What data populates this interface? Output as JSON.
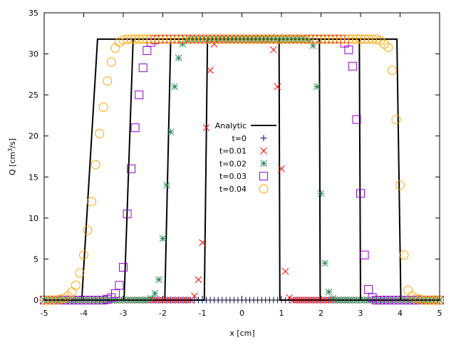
{
  "chart_data": {
    "type": "scatter",
    "xlabel": "x [cm]",
    "ylabel": "Q [cm",
    "ylabel_sup": "3",
    "ylabel_tail": "/s]",
    "xlim": [
      -5,
      5
    ],
    "ylim": [
      0,
      35
    ],
    "xticks": [
      -5,
      -4,
      -3,
      -2,
      -1,
      0,
      1,
      2,
      3,
      4,
      5
    ],
    "yticks": [
      0,
      5,
      10,
      15,
      20,
      25,
      30,
      35
    ],
    "grid": false,
    "legend_placement": "center",
    "analytic": {
      "name": "Analytic",
      "color": "#000000",
      "curves": [
        [
          [
            -5,
            0
          ],
          [
            -0.95,
            0
          ],
          [
            -0.87,
            31.8
          ],
          [
            0.94,
            31.8
          ],
          [
            0.96,
            0
          ],
          [
            5,
            0
          ]
        ],
        [
          [
            -5,
            0
          ],
          [
            -1.95,
            0
          ],
          [
            -1.8,
            31.8
          ],
          [
            1.96,
            31.8
          ],
          [
            1.98,
            0
          ],
          [
            5,
            0
          ]
        ],
        [
          [
            -5,
            0
          ],
          [
            -2.98,
            0
          ],
          [
            -2.75,
            31.8
          ],
          [
            2.97,
            31.8
          ],
          [
            3.0,
            0
          ],
          [
            5,
            0
          ]
        ],
        [
          [
            -5,
            0
          ],
          [
            -4.05,
            0
          ],
          [
            -3.65,
            31.8
          ],
          [
            3.92,
            31.8
          ],
          [
            4.02,
            0
          ],
          [
            5,
            0
          ]
        ]
      ]
    },
    "x": [
      -5.0,
      -4.9,
      -4.8,
      -4.7,
      -4.6,
      -4.5,
      -4.4,
      -4.3,
      -4.2,
      -4.1,
      -4.0,
      -3.9,
      -3.8,
      -3.7,
      -3.6,
      -3.5,
      -3.4,
      -3.3,
      -3.2,
      -3.1,
      -3.0,
      -2.9,
      -2.8,
      -2.7,
      -2.6,
      -2.5,
      -2.4,
      -2.3,
      -2.2,
      -2.1,
      -2.0,
      -1.9,
      -1.8,
      -1.7,
      -1.6,
      -1.5,
      -1.4,
      -1.3,
      -1.2,
      -1.1,
      -1.0,
      -0.9,
      -0.8,
      -0.7,
      -0.6,
      -0.5,
      -0.4,
      -0.3,
      -0.2,
      -0.1,
      0.0,
      0.1,
      0.2,
      0.3,
      0.4,
      0.5,
      0.6,
      0.7,
      0.8,
      0.9,
      1.0,
      1.1,
      1.2,
      1.3,
      1.4,
      1.5,
      1.6,
      1.7,
      1.8,
      1.9,
      2.0,
      2.1,
      2.2,
      2.3,
      2.4,
      2.5,
      2.6,
      2.7,
      2.8,
      2.9,
      3.0,
      3.1,
      3.2,
      3.3,
      3.4,
      3.5,
      3.6,
      3.7,
      3.8,
      3.9,
      4.0,
      4.1,
      4.2,
      4.3,
      4.4,
      4.5,
      4.6,
      4.7,
      4.8,
      4.9,
      5.0
    ],
    "series": [
      {
        "name": "t=0",
        "marker": "plus",
        "color": "#00008b",
        "values": [
          0,
          0,
          0,
          0,
          0,
          0,
          0,
          0,
          0,
          0,
          0,
          0,
          0,
          0,
          0,
          0,
          0,
          0,
          0,
          0,
          0,
          0,
          0,
          0,
          0,
          0,
          0,
          0,
          0,
          0,
          0,
          0,
          0,
          0,
          0,
          0,
          0,
          0,
          0,
          0,
          0,
          0,
          0,
          0,
          0,
          0,
          0,
          0,
          0,
          0,
          0,
          0,
          0,
          0,
          0,
          0,
          0,
          0,
          0,
          0,
          0,
          0,
          0,
          0,
          0,
          0,
          0,
          0,
          0,
          0,
          0,
          0,
          0,
          0,
          0,
          0,
          0,
          0,
          0,
          0,
          0,
          0,
          0,
          0,
          0,
          0,
          0,
          0,
          0,
          0,
          0,
          0,
          0,
          0,
          0,
          0,
          0,
          0,
          0,
          0,
          0
        ]
      },
      {
        "name": "t=0.01",
        "marker": "cross",
        "color": "#ff0000",
        "values": [
          0,
          0,
          0,
          0,
          0,
          0,
          0,
          0,
          0,
          0,
          0,
          0,
          0,
          0,
          0,
          0,
          0,
          0,
          0,
          0,
          0,
          0,
          0,
          0,
          0,
          0,
          0,
          0,
          0,
          0,
          0,
          0,
          0,
          0,
          0,
          0,
          0,
          0,
          0.5,
          2.5,
          7,
          21,
          28,
          31.2,
          31.8,
          31.8,
          31.8,
          31.8,
          31.8,
          31.8,
          31.8,
          31.8,
          31.8,
          31.8,
          31.8,
          31.8,
          31.8,
          31.8,
          30.5,
          26,
          16,
          3.5,
          0.3,
          0,
          0,
          0,
          0,
          0,
          0,
          0,
          0,
          0,
          0,
          0,
          0,
          0,
          0,
          0,
          0,
          0,
          0,
          0,
          0,
          0,
          0,
          0,
          0,
          0,
          0,
          0,
          0,
          0,
          0,
          0,
          0,
          0,
          0,
          0,
          0,
          0,
          0
        ]
      },
      {
        "name": "t=0.02",
        "marker": "star",
        "color": "#2e8b57",
        "values": [
          0,
          0,
          0,
          0,
          0,
          0,
          0,
          0,
          0,
          0,
          0,
          0,
          0,
          0,
          0,
          0,
          0,
          0,
          0,
          0,
          0,
          0,
          0,
          0,
          0,
          0,
          0,
          0.2,
          0.8,
          2.5,
          7.5,
          14,
          20.5,
          26,
          29.5,
          31.2,
          31.7,
          31.8,
          31.8,
          31.8,
          31.8,
          31.8,
          31.8,
          31.8,
          31.8,
          31.8,
          31.8,
          31.8,
          31.8,
          31.8,
          31.8,
          31.8,
          31.8,
          31.8,
          31.8,
          31.8,
          31.8,
          31.8,
          31.8,
          31.8,
          31.8,
          31.8,
          31.8,
          31.8,
          31.8,
          31.8,
          31.8,
          31.6,
          31,
          26,
          13,
          4.5,
          1,
          0.2,
          0,
          0,
          0,
          0,
          0,
          0,
          0,
          0,
          0,
          0,
          0,
          0,
          0,
          0,
          0,
          0,
          0,
          0,
          0,
          0,
          0,
          0,
          0,
          0,
          0,
          0,
          0
        ]
      },
      {
        "name": "t=0.03",
        "marker": "square",
        "color": "#9400d3",
        "values": [
          0,
          0,
          0,
          0,
          0,
          0,
          0,
          0,
          0,
          0,
          0,
          0,
          0,
          0,
          0,
          0,
          0.1,
          0.3,
          0.8,
          1.8,
          4,
          10.5,
          16,
          21,
          25,
          28.3,
          30.4,
          31.4,
          31.7,
          31.8,
          31.8,
          31.8,
          31.8,
          31.8,
          31.8,
          31.8,
          31.8,
          31.8,
          31.8,
          31.8,
          31.8,
          31.8,
          31.8,
          31.8,
          31.8,
          31.8,
          31.8,
          31.8,
          31.8,
          31.8,
          31.8,
          31.8,
          31.8,
          31.8,
          31.8,
          31.8,
          31.8,
          31.8,
          31.8,
          31.8,
          31.8,
          31.8,
          31.8,
          31.8,
          31.8,
          31.8,
          31.8,
          31.8,
          31.8,
          31.8,
          31.8,
          31.8,
          31.8,
          31.8,
          31.8,
          31.8,
          31.3,
          30.5,
          28.5,
          22,
          13,
          5.5,
          1.3,
          0.3,
          0,
          0,
          0,
          0,
          0,
          0,
          0,
          0,
          0,
          0,
          0,
          0,
          0,
          0,
          0,
          0,
          0
        ]
      },
      {
        "name": "t=0.04",
        "marker": "circle",
        "color": "#ffa500",
        "values": [
          0,
          0,
          0,
          0,
          0.1,
          0.2,
          0.5,
          1,
          1.8,
          3.3,
          5.5,
          8.5,
          12,
          16.5,
          20.3,
          23.5,
          26.7,
          29,
          30.7,
          31.4,
          31.7,
          31.8,
          31.8,
          31.8,
          31.8,
          31.8,
          31.8,
          31.8,
          31.8,
          31.8,
          31.8,
          31.8,
          31.8,
          31.8,
          31.8,
          31.8,
          31.8,
          31.8,
          31.8,
          31.8,
          31.8,
          31.8,
          31.8,
          31.8,
          31.8,
          31.8,
          31.8,
          31.8,
          31.8,
          31.8,
          31.8,
          31.8,
          31.8,
          31.8,
          31.8,
          31.8,
          31.8,
          31.8,
          31.8,
          31.8,
          31.8,
          31.8,
          31.8,
          31.8,
          31.8,
          31.8,
          31.8,
          31.8,
          31.8,
          31.8,
          31.8,
          31.8,
          31.8,
          31.8,
          31.8,
          31.8,
          31.8,
          31.8,
          31.8,
          31.8,
          31.8,
          31.8,
          31.8,
          31.8,
          31.8,
          31.6,
          31.2,
          30.8,
          28,
          22,
          14,
          5.5,
          1.2,
          0.5,
          0.2,
          0.1,
          0,
          0,
          0,
          0,
          0
        ]
      }
    ]
  }
}
